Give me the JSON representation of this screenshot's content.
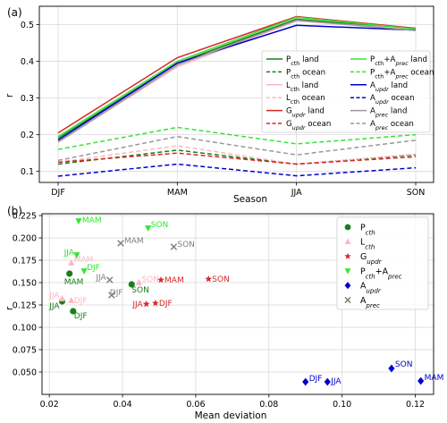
{
  "panels": [
    {
      "panel_label": "(a)",
      "chart_data": {
        "type": "line",
        "x": [
          "DJF",
          "MAM",
          "JJA",
          "SON"
        ],
        "xlabel": "Season",
        "ylabel": "r",
        "ylim": [
          0.07,
          0.55
        ],
        "yticks": [
          0.1,
          0.2,
          0.3,
          0.4,
          0.5
        ],
        "yticklabels": [
          "0.1",
          "0.2",
          "0.3",
          "0.4",
          "0.5"
        ],
        "grid": true,
        "legend": {
          "position": "right",
          "columns": 2
        },
        "series": [
          {
            "name": "P_cth land",
            "label_main": "P",
            "label_sub": "cth",
            "label_rest": " land",
            "sub_italic": false,
            "color": "#1a7f1a",
            "dash": "solid",
            "values": [
              0.19,
              0.395,
              0.515,
              0.487
            ]
          },
          {
            "name": "P_cth ocean",
            "label_main": "P",
            "label_sub": "cth",
            "label_rest": " ocean",
            "sub_italic": false,
            "color": "#1a7f1a",
            "dash": "dashed",
            "values": [
              0.12,
              0.158,
              0.12,
              0.145
            ]
          },
          {
            "name": "L_cth land",
            "label_main": "L",
            "label_sub": "cth",
            "label_rest": " land",
            "sub_italic": false,
            "color": "#ffb6c1",
            "dash": "solid",
            "values": [
              0.18,
              0.385,
              0.51,
              0.487
            ]
          },
          {
            "name": "L_cth ocean",
            "label_main": "L",
            "label_sub": "cth",
            "label_rest": " ocean",
            "sub_italic": false,
            "color": "#ffb6c1",
            "dash": "dashed",
            "values": [
              0.125,
              0.17,
              0.12,
              0.147
            ]
          },
          {
            "name": "G_updr land",
            "label_main": "G",
            "label_sub": "updr",
            "label_rest": " land",
            "sub_italic": true,
            "color": "#d62728",
            "dash": "solid",
            "values": [
              0.205,
              0.41,
              0.522,
              0.49
            ]
          },
          {
            "name": "G_updr ocean",
            "label_main": "G",
            "label_sub": "updr",
            "label_rest": " ocean",
            "sub_italic": true,
            "color": "#d62728",
            "dash": "dashed",
            "values": [
              0.125,
              0.15,
              0.12,
              0.14
            ]
          },
          {
            "name": "P_cth+A_prec land",
            "label_main": "P",
            "label_sub": "cth",
            "label_rest": "+A",
            "label_sub2": "prec",
            "label_rest2": " land",
            "sub_italic": false,
            "color": "#33e533",
            "dash": "solid",
            "values": [
              0.195,
              0.4,
              0.52,
              0.488
            ]
          },
          {
            "name": "P_cth+A_prec ocean",
            "label_main": "P",
            "label_sub": "cth",
            "label_rest": "+A",
            "label_sub2": "prec",
            "label_rest2": " ocean",
            "sub_italic": false,
            "color": "#33e533",
            "dash": "dashed",
            "values": [
              0.16,
              0.22,
              0.175,
              0.2
            ]
          },
          {
            "name": "A_updr land",
            "label_main": "A",
            "label_sub": "updr",
            "label_rest": " land",
            "sub_italic": true,
            "color": "#0000cc",
            "dash": "solid",
            "values": [
              0.185,
              0.395,
              0.498,
              0.485
            ]
          },
          {
            "name": "A_updr ocean",
            "label_main": "A",
            "label_sub": "updr",
            "label_rest": " ocean",
            "sub_italic": true,
            "color": "#0000cc",
            "dash": "dashed",
            "values": [
              0.087,
              0.12,
              0.088,
              0.11
            ]
          },
          {
            "name": "A_prec land",
            "label_main": "A",
            "label_sub": "prec",
            "label_rest": " land",
            "sub_italic": true,
            "color": "#999999",
            "dash": "solid",
            "values": [
              0.18,
              0.39,
              0.512,
              0.484
            ]
          },
          {
            "name": "A_prec ocean",
            "label_main": "A",
            "label_sub": "prec",
            "label_rest": " ocean",
            "sub_italic": true,
            "color": "#999999",
            "dash": "dashed",
            "values": [
              0.13,
              0.195,
              0.145,
              0.185
            ]
          }
        ]
      }
    },
    {
      "panel_label": "(b)",
      "chart_data": {
        "type": "scatter",
        "xlabel": "Mean deviation",
        "ylabel": "r",
        "xlim": [
          0.018,
          0.125
        ],
        "ylim": [
          0.025,
          0.227
        ],
        "xticks": [
          0.02,
          0.04,
          0.06,
          0.08,
          0.1,
          0.12
        ],
        "xticklabels": [
          "0.02",
          "0.04",
          "0.06",
          "0.08",
          "0.10",
          "0.12"
        ],
        "yticks": [
          0.05,
          0.075,
          0.1,
          0.125,
          0.15,
          0.175,
          0.2,
          0.225
        ],
        "yticklabels": [
          "0.050",
          "0.075",
          "0.100",
          "0.125",
          "0.150",
          "0.175",
          "0.200",
          "0.225"
        ],
        "grid": true,
        "legend": {
          "position": "top-right"
        },
        "series": [
          {
            "name": "P_cth",
            "label_main": "P",
            "label_sub": "cth",
            "sub_italic": true,
            "marker": "circle",
            "color": "#1a7f1a",
            "points": [
              {
                "label": "DJF",
                "x": 0.0265,
                "y": 0.118
              },
              {
                "label": "MAM",
                "x": 0.0255,
                "y": 0.16
              },
              {
                "label": "JJA",
                "x": 0.0235,
                "y": 0.129
              },
              {
                "label": "SON",
                "x": 0.0425,
                "y": 0.148
              }
            ]
          },
          {
            "name": "L_cth",
            "label_main": "L",
            "label_sub": "cth",
            "sub_italic": true,
            "marker": "triangle-up",
            "color": "#ffb6c1",
            "points": [
              {
                "label": "DJF",
                "x": 0.026,
                "y": 0.13
              },
              {
                "label": "MAM",
                "x": 0.026,
                "y": 0.172
              },
              {
                "label": "JJA",
                "x": 0.0235,
                "y": 0.132
              },
              {
                "label": "SON",
                "x": 0.0445,
                "y": 0.15
              }
            ]
          },
          {
            "name": "G_updr",
            "label_main": "G",
            "label_sub": "updr",
            "sub_italic": true,
            "marker": "star",
            "color": "#d62728",
            "points": [
              {
                "label": "DJF",
                "x": 0.049,
                "y": 0.127
              },
              {
                "label": "MAM",
                "x": 0.0505,
                "y": 0.153
              },
              {
                "label": "JJA",
                "x": 0.0465,
                "y": 0.126
              },
              {
                "label": "SON",
                "x": 0.0635,
                "y": 0.154
              }
            ]
          },
          {
            "name": "P_cth+A_prec",
            "label_main": "P",
            "label_sub": "cth",
            "label_rest": "+A",
            "label_sub2": "prec",
            "sub_italic": true,
            "marker": "triangle-down",
            "color": "#33e533",
            "points": [
              {
                "label": "DJF",
                "x": 0.0295,
                "y": 0.163
              },
              {
                "label": "MAM",
                "x": 0.028,
                "y": 0.219
              },
              {
                "label": "JJA",
                "x": 0.0275,
                "y": 0.181
              },
              {
                "label": "SON",
                "x": 0.047,
                "y": 0.211
              }
            ]
          },
          {
            "name": "A_updr",
            "label_main": "A",
            "label_sub": "updr",
            "sub_italic": true,
            "marker": "diamond",
            "color": "#0000cc",
            "points": [
              {
                "label": "DJF",
                "x": 0.09,
                "y": 0.039
              },
              {
                "label": "MAM",
                "x": 0.1215,
                "y": 0.04
              },
              {
                "label": "JJA",
                "x": 0.096,
                "y": 0.039
              },
              {
                "label": "SON",
                "x": 0.1135,
                "y": 0.054
              }
            ]
          },
          {
            "name": "A_prec",
            "label_main": "A",
            "label_sub": "prec",
            "sub_italic": true,
            "marker": "x",
            "color": "#808080",
            "points": [
              {
                "label": "DJF",
                "x": 0.037,
                "y": 0.136
              },
              {
                "label": "MAM",
                "x": 0.0395,
                "y": 0.194
              },
              {
                "label": "JJA",
                "x": 0.0365,
                "y": 0.153
              },
              {
                "label": "SON",
                "x": 0.054,
                "y": 0.19
              }
            ]
          }
        ]
      }
    }
  ]
}
